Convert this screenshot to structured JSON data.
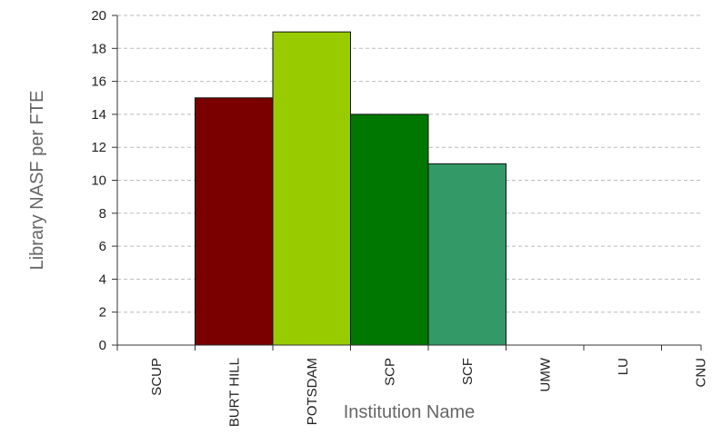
{
  "chart_data": {
    "type": "bar",
    "title": "",
    "xlabel": "Institution Name",
    "ylabel": "Library NASF per FTE",
    "categories": [
      "SCUP",
      "BURT HILL",
      "POTSDAM",
      "SCP",
      "SCF",
      "UMW",
      "LU",
      "CNU"
    ],
    "values": [
      0,
      15,
      19,
      14,
      11,
      0,
      0,
      0
    ],
    "bar_colors": [
      "#ffffff",
      "#7a0000",
      "#99cc00",
      "#007700",
      "#339966",
      "#ffffff",
      "#ffffff",
      "#ffffff"
    ],
    "ylim": [
      0,
      20
    ],
    "yticks": [
      0,
      2,
      4,
      6,
      8,
      10,
      12,
      14,
      16,
      18,
      20
    ],
    "grid": true,
    "grid_color": "#bbbbbb",
    "legend": "none"
  }
}
